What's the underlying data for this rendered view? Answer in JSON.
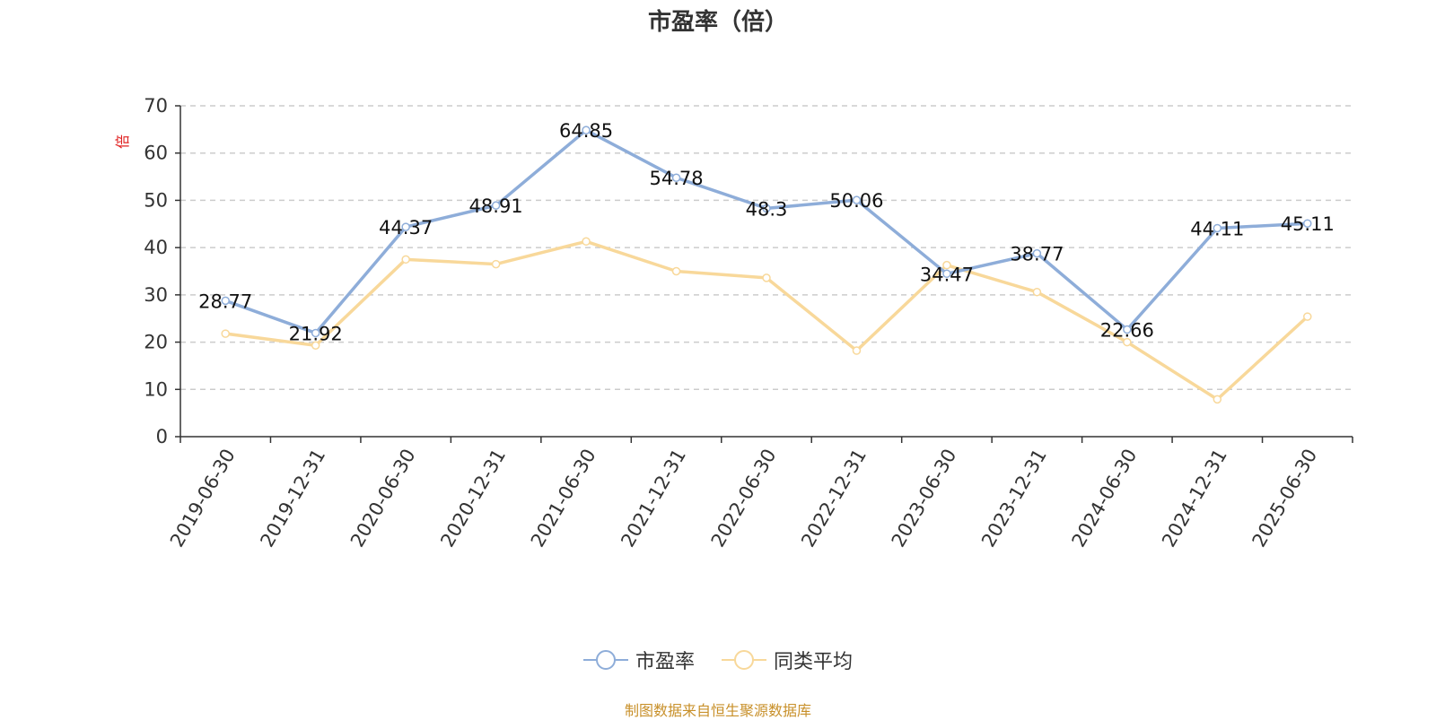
{
  "chart_data": {
    "type": "line",
    "title": "市盈率（倍）",
    "ylabel": "倍",
    "ylim": [
      0,
      70
    ],
    "yticks": [
      0,
      10,
      20,
      30,
      40,
      50,
      60,
      70
    ],
    "grid": true,
    "legend_position": "bottom",
    "categories": [
      "2019-06-30",
      "2019-12-31",
      "2020-06-30",
      "2020-12-31",
      "2021-06-30",
      "2021-12-31",
      "2022-06-30",
      "2022-12-31",
      "2023-06-30",
      "2023-12-31",
      "2024-06-30",
      "2024-12-31",
      "2025-06-30"
    ],
    "series": [
      {
        "name": "市盈率",
        "color": "#8eadd9",
        "values": [
          28.77,
          21.92,
          44.37,
          48.91,
          64.85,
          54.78,
          48.3,
          50.06,
          34.47,
          38.77,
          22.66,
          44.11,
          45.11
        ],
        "labels": [
          "28.77",
          "21.92",
          "44.37",
          "48.91",
          "64.85",
          "54.78",
          "48.3",
          "50.06",
          "34.47",
          "38.77",
          "22.66",
          "44.11",
          "45.11"
        ]
      },
      {
        "name": "同类平均",
        "color": "#f8d89a",
        "values": [
          21.8,
          19.3,
          37.5,
          36.5,
          41.3,
          35.0,
          33.6,
          18.2,
          36.3,
          30.6,
          20.0,
          7.9,
          25.4
        ]
      }
    ]
  },
  "footer": "制图数据来自恒生聚源数据库"
}
